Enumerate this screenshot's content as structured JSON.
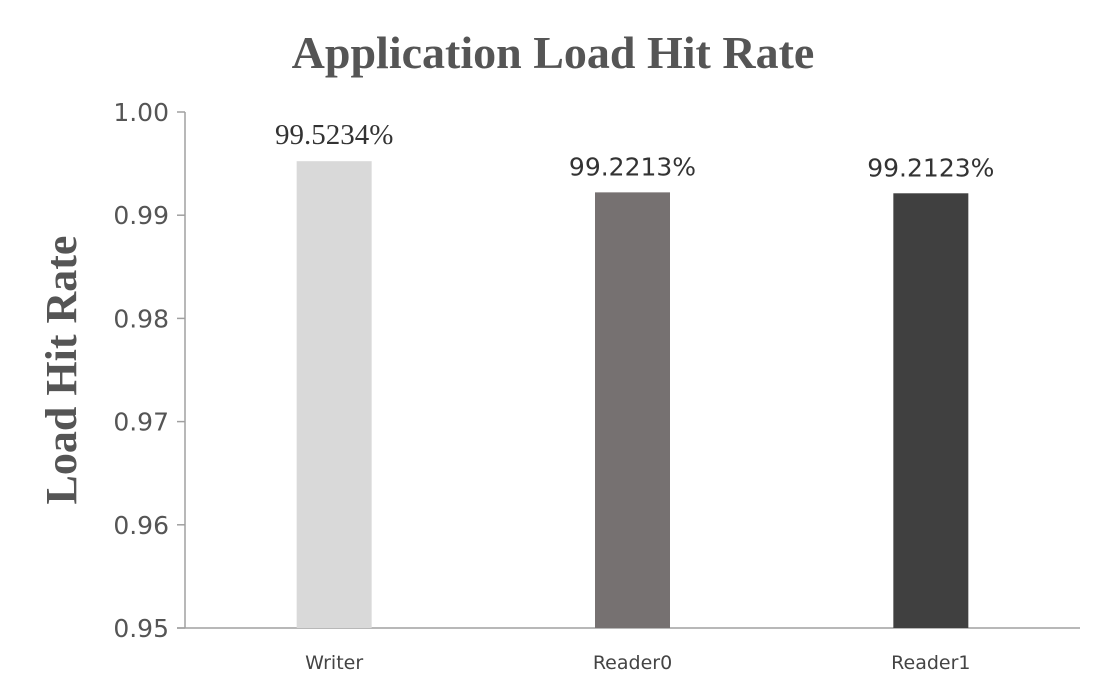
{
  "chart_data": {
    "type": "bar",
    "title": "Application Load Hit Rate",
    "xlabel": "",
    "ylabel": "Load Hit Rate",
    "categories": [
      "Writer",
      "Reader0",
      "Reader1"
    ],
    "values": [
      0.995234,
      0.992213,
      0.992123
    ],
    "data_labels": [
      "99.5234%",
      "99.2213%",
      "99.2123%"
    ],
    "ylim": [
      0.95,
      1.0
    ],
    "yticks": [
      0.95,
      0.96,
      0.97,
      0.98,
      0.99,
      1.0
    ],
    "ytick_labels": [
      "0.95",
      "0.96",
      "0.97",
      "0.98",
      "0.99",
      "1.00"
    ],
    "bar_colors": [
      "#d9d9d9",
      "#767171",
      "#404040"
    ],
    "grid": false,
    "legend": "none"
  }
}
